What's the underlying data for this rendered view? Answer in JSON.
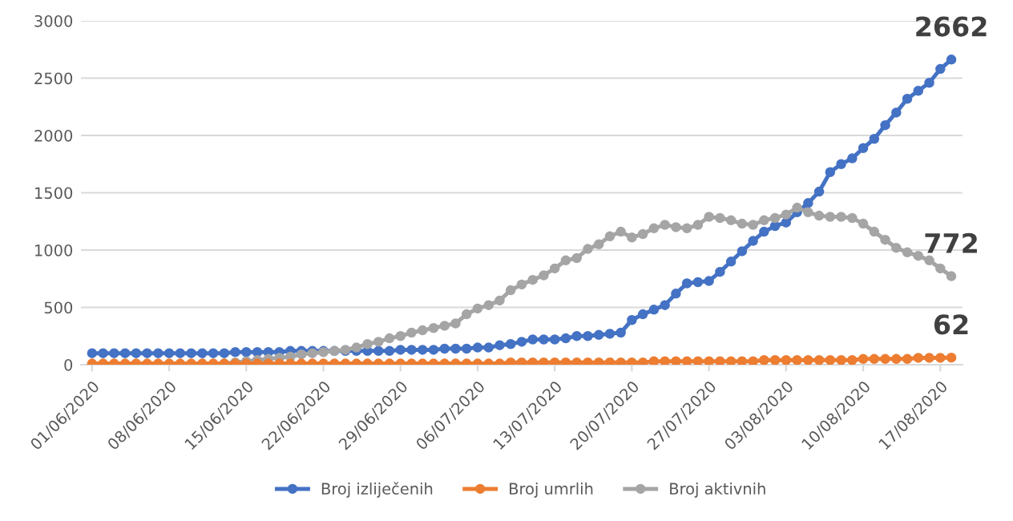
{
  "chart_data": {
    "type": "line",
    "categories": [
      "01/06/2020",
      null,
      null,
      null,
      null,
      null,
      null,
      "08/06/2020",
      null,
      null,
      null,
      null,
      null,
      null,
      "15/06/2020",
      null,
      null,
      null,
      null,
      null,
      null,
      "22/06/2020",
      null,
      null,
      null,
      null,
      null,
      null,
      "29/06/2020",
      null,
      null,
      null,
      null,
      null,
      null,
      "06/07/2020",
      null,
      null,
      null,
      null,
      null,
      null,
      "13/07/2020",
      null,
      null,
      null,
      null,
      null,
      null,
      "20/07/2020",
      null,
      null,
      null,
      null,
      null,
      null,
      "27/07/2020",
      null,
      null,
      null,
      null,
      null,
      null,
      "03/08/2020",
      null,
      null,
      null,
      null,
      null,
      null,
      "10/08/2020",
      null,
      null,
      null,
      null,
      null,
      null,
      "17/08/2020",
      null
    ],
    "series": [
      {
        "name": "Broj izliječenih",
        "color": "#4472c4",
        "values": [
          100,
          100,
          100,
          100,
          100,
          100,
          100,
          100,
          100,
          100,
          100,
          100,
          100,
          110,
          110,
          110,
          110,
          110,
          120,
          120,
          120,
          120,
          120,
          120,
          120,
          120,
          120,
          120,
          130,
          130,
          130,
          130,
          140,
          140,
          140,
          150,
          150,
          170,
          180,
          200,
          220,
          220,
          220,
          230,
          250,
          250,
          260,
          270,
          280,
          390,
          440,
          480,
          520,
          620,
          710,
          720,
          730,
          810,
          900,
          990,
          1080,
          1160,
          1210,
          1240,
          1330,
          1410,
          1510,
          1680,
          1750,
          1800,
          1890,
          1970,
          2090,
          2200,
          2320,
          2390,
          2460,
          2580,
          2662
        ],
        "value_labels": [
          null,
          null,
          null,
          null,
          null,
          null,
          null,
          null,
          null,
          null,
          null,
          null,
          null,
          null,
          null,
          null,
          null,
          null,
          null,
          null,
          null,
          null,
          null,
          null,
          null,
          null,
          null,
          null,
          null,
          null,
          null,
          null,
          null,
          null,
          null,
          null,
          null,
          null,
          null,
          null,
          null,
          null,
          null,
          null,
          null,
          null,
          null,
          null,
          null,
          null,
          null,
          null,
          null,
          null,
          null,
          null,
          null,
          null,
          null,
          null,
          null,
          null,
          null,
          null,
          null,
          null,
          null,
          null,
          null,
          null,
          null,
          null,
          null,
          null,
          null,
          null,
          null,
          null,
          "2662"
        ]
      },
      {
        "name": "Broj umrlih",
        "color": "#ed7d31",
        "values": [
          10,
          10,
          10,
          10,
          10,
          10,
          10,
          10,
          10,
          10,
          10,
          10,
          10,
          10,
          10,
          10,
          10,
          10,
          10,
          10,
          10,
          10,
          10,
          10,
          10,
          10,
          10,
          10,
          10,
          10,
          10,
          10,
          10,
          10,
          10,
          10,
          10,
          10,
          20,
          20,
          20,
          20,
          20,
          20,
          20,
          20,
          20,
          20,
          20,
          20,
          20,
          30,
          30,
          30,
          30,
          30,
          30,
          30,
          30,
          30,
          30,
          40,
          40,
          40,
          40,
          40,
          40,
          40,
          40,
          40,
          50,
          50,
          50,
          50,
          50,
          60,
          60,
          60,
          62
        ],
        "value_labels": [
          null,
          null,
          null,
          null,
          null,
          null,
          null,
          null,
          null,
          null,
          null,
          null,
          null,
          null,
          null,
          null,
          null,
          null,
          null,
          null,
          null,
          null,
          null,
          null,
          null,
          null,
          null,
          null,
          null,
          null,
          null,
          null,
          null,
          null,
          null,
          null,
          null,
          null,
          null,
          null,
          null,
          null,
          null,
          null,
          null,
          null,
          null,
          null,
          null,
          null,
          null,
          null,
          null,
          null,
          null,
          null,
          null,
          null,
          null,
          null,
          null,
          null,
          null,
          null,
          null,
          null,
          null,
          null,
          null,
          null,
          null,
          null,
          null,
          null,
          null,
          null,
          null,
          null,
          "62"
        ]
      },
      {
        "name": "Broj aktivnih",
        "color": "#a5a5a5",
        "values": [
          0,
          0,
          0,
          0,
          0,
          0,
          0,
          0,
          0,
          0,
          0,
          0,
          10,
          20,
          30,
          40,
          50,
          60,
          70,
          90,
          100,
          110,
          120,
          130,
          150,
          180,
          200,
          230,
          250,
          280,
          300,
          320,
          340,
          360,
          440,
          490,
          520,
          560,
          650,
          700,
          740,
          780,
          840,
          910,
          930,
          1010,
          1050,
          1120,
          1160,
          1110,
          1140,
          1190,
          1220,
          1200,
          1190,
          1220,
          1290,
          1280,
          1260,
          1230,
          1220,
          1260,
          1280,
          1310,
          1370,
          1330,
          1300,
          1290,
          1290,
          1280,
          1230,
          1160,
          1090,
          1020,
          980,
          950,
          910,
          840,
          772
        ],
        "value_labels": [
          null,
          null,
          null,
          null,
          null,
          null,
          null,
          null,
          null,
          null,
          null,
          null,
          null,
          null,
          null,
          null,
          null,
          null,
          null,
          null,
          null,
          null,
          null,
          null,
          null,
          null,
          null,
          null,
          null,
          null,
          null,
          null,
          null,
          null,
          null,
          null,
          null,
          null,
          null,
          null,
          null,
          null,
          null,
          null,
          null,
          null,
          null,
          null,
          null,
          null,
          null,
          null,
          null,
          null,
          null,
          null,
          null,
          null,
          null,
          null,
          null,
          null,
          null,
          null,
          null,
          null,
          null,
          null,
          null,
          null,
          null,
          null,
          null,
          null,
          null,
          null,
          null,
          null,
          "772"
        ]
      }
    ],
    "ylim": [
      0,
      3000
    ],
    "yticks": [
      0,
      500,
      1000,
      1500,
      2000,
      2500,
      3000
    ],
    "grid": "y",
    "legend": "bottom",
    "marker": "circle",
    "line_style": "solid"
  }
}
